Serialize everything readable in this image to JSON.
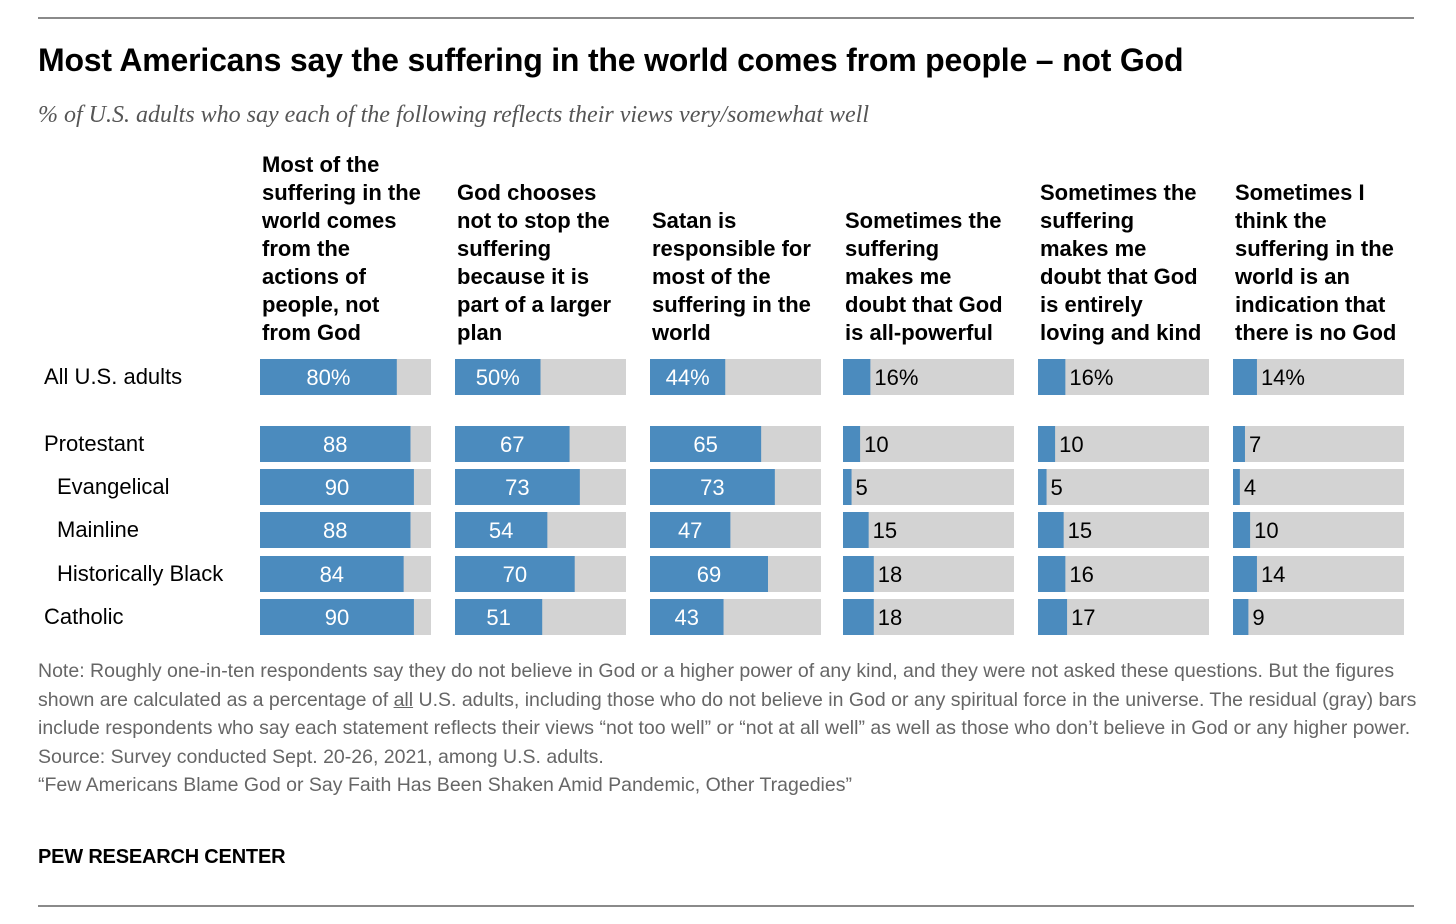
{
  "header": {
    "title": "Most Americans say the suffering in the world comes from people – not God",
    "subtitle": "% of U.S. adults who say each of the following reflects their views very/somewhat well"
  },
  "chart_data": {
    "type": "bar",
    "orientation": "horizontal",
    "layout": "small-multiples",
    "xlim": [
      0,
      100
    ],
    "colors": {
      "value": "#4b8bbe",
      "residual": "#d3d3d3",
      "label_inside": "#ffffff",
      "label_outside": "#000000"
    },
    "columns": [
      {
        "label_lines": [
          "Most of the",
          "suffering in the",
          "world comes",
          "from the",
          "actions of",
          "people, not",
          "from God"
        ]
      },
      {
        "label_lines": [
          "God chooses",
          "not to stop the",
          "suffering",
          "because it is",
          "part of a larger",
          "plan"
        ]
      },
      {
        "label_lines": [
          "Satan is",
          "responsible for",
          "most of the",
          "suffering in the",
          "world"
        ]
      },
      {
        "label_lines": [
          "Sometimes the",
          "suffering",
          "makes me",
          "doubt that God",
          "is all-powerful"
        ]
      },
      {
        "label_lines": [
          "Sometimes the",
          "suffering",
          "makes me",
          "doubt that God",
          "is entirely",
          "loving and kind"
        ]
      },
      {
        "label_lines": [
          "Sometimes I",
          "think the",
          "suffering in the",
          "world is an",
          "indication that",
          "there is no God"
        ]
      }
    ],
    "rows": [
      {
        "label": "All U.S. adults",
        "indent": false,
        "values": [
          80,
          50,
          44,
          16,
          16,
          14
        ],
        "labels": [
          "80%",
          "50%",
          "44%",
          "16%",
          "16%",
          "14%"
        ]
      },
      {
        "label": "Protestant",
        "indent": false,
        "values": [
          88,
          67,
          65,
          10,
          10,
          7
        ],
        "labels": [
          "88",
          "67",
          "65",
          "10",
          "10",
          "7"
        ]
      },
      {
        "label": "Evangelical",
        "indent": true,
        "values": [
          90,
          73,
          73,
          5,
          5,
          4
        ],
        "labels": [
          "90",
          "73",
          "73",
          "5",
          "5",
          "4"
        ]
      },
      {
        "label": "Mainline",
        "indent": true,
        "values": [
          88,
          54,
          47,
          15,
          15,
          10
        ],
        "labels": [
          "88",
          "54",
          "47",
          "15",
          "15",
          "10"
        ]
      },
      {
        "label": "Historically Black",
        "indent": true,
        "values": [
          84,
          70,
          69,
          18,
          16,
          14
        ],
        "labels": [
          "84",
          "70",
          "69",
          "18",
          "16",
          "14"
        ]
      },
      {
        "label": "Catholic",
        "indent": false,
        "values": [
          90,
          51,
          43,
          18,
          17,
          9
        ],
        "labels": [
          "90",
          "51",
          "43",
          "18",
          "17",
          "9"
        ]
      }
    ]
  },
  "notes": {
    "note_part1": "Note: Roughly one-in-ten respondents say they do not believe in God or a higher power of any kind, and they were not asked these questions. But the figures shown are calculated as a percentage of ",
    "note_underlined": "all",
    "note_part2": " U.S. adults, including those who do not believe in God or any spiritual force in the universe. The residual (gray) bars include respondents who say each statement reflects their views “not too well” or “not at all well” as well as those who don’t believe in God or any higher power.",
    "source": "Source: Survey conducted Sept. 20-26, 2021, among U.S. adults.",
    "report": "“Few Americans Blame God or Say Faith Has Been Shaken Amid Pandemic, Other Tragedies”"
  },
  "brand": "PEW RESEARCH CENTER"
}
